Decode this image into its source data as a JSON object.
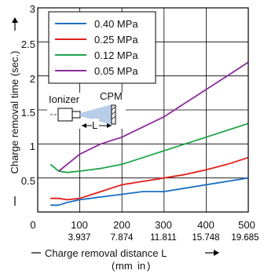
{
  "chart_data": {
    "type": "line",
    "title": "",
    "xlabel": "Charge removal distance L",
    "xunit_mm": "mm",
    "xunit_in": "in",
    "ylabel": "Charge removal time (sec.)",
    "xlim": [
      0,
      500
    ],
    "ylim": [
      0,
      3
    ],
    "x_ticks": [
      "0",
      "100",
      "200",
      "300",
      "400",
      "500"
    ],
    "x_ticks_in": [
      "3.937",
      "7.874",
      "11.811",
      "15.748",
      "19.685"
    ],
    "y_ticks": [
      "0.5",
      "1",
      "1.5",
      "2",
      "2.5",
      "3"
    ],
    "grid": true,
    "legend_position": "top-left",
    "series": [
      {
        "name": "0.40 MPa",
        "color": "#1a6fc4",
        "x": [
          30,
          50,
          70,
          100,
          150,
          200,
          250,
          300,
          350,
          400,
          450,
          500
        ],
        "y": [
          0.1,
          0.1,
          0.14,
          0.18,
          0.22,
          0.26,
          0.3,
          0.3,
          0.35,
          0.4,
          0.45,
          0.5
        ]
      },
      {
        "name": "0.25 MPa",
        "color": "#e0201b",
        "x": [
          30,
          50,
          70,
          100,
          150,
          200,
          250,
          300,
          350,
          400,
          450,
          500
        ],
        "y": [
          0.2,
          0.2,
          0.18,
          0.2,
          0.3,
          0.4,
          0.45,
          0.5,
          0.55,
          0.62,
          0.7,
          0.8
        ]
      },
      {
        "name": "0.12 MPa",
        "color": "#1fa34a",
        "x": [
          30,
          50,
          70,
          100,
          150,
          200,
          250,
          300,
          350,
          400,
          450,
          500
        ],
        "y": [
          0.7,
          0.6,
          0.58,
          0.6,
          0.64,
          0.7,
          0.8,
          0.9,
          1.0,
          1.1,
          1.2,
          1.3
        ]
      },
      {
        "name": "0.05 MPa",
        "color": "#8a2b9a",
        "x": [
          50,
          100,
          150,
          200,
          250,
          300,
          350,
          400,
          450,
          500
        ],
        "y": [
          0.6,
          0.85,
          1.0,
          1.1,
          1.25,
          1.4,
          1.6,
          1.8,
          2.0,
          2.2
        ]
      }
    ]
  },
  "inset": {
    "ionizer_label": "Ionizer",
    "cpm_label": "CPM",
    "distance_label": "L"
  },
  "colors": {
    "inch_text": "#1a8fd6",
    "grid": "#000000",
    "frame": "#000000"
  }
}
